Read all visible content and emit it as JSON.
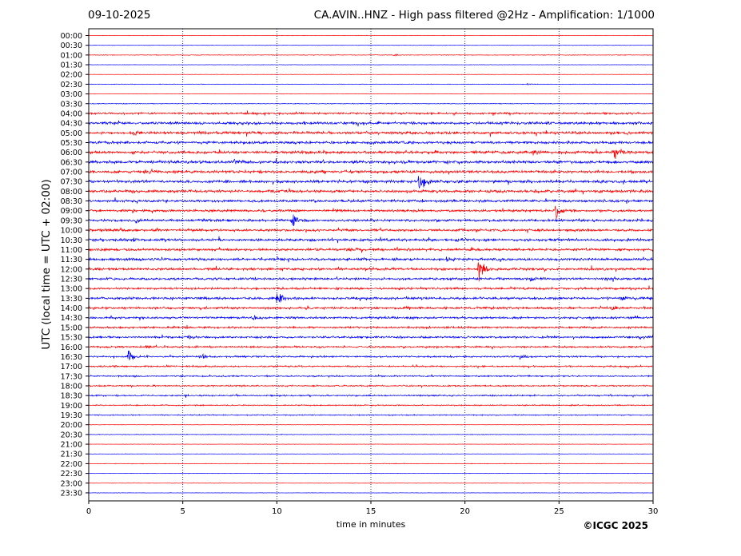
{
  "header": {
    "date": "09-10-2025",
    "title": "CA.AVIN..HNZ - High pass filtered @2Hz - Amplification: 1/1000"
  },
  "footer": {
    "copyright": "©ICGC 2025"
  },
  "colors": {
    "even_row": "#ff0000",
    "odd_row": "#0000ff",
    "gridline": "#000080"
  },
  "chart_data": {
    "type": "line",
    "title": "CA.AVIN..HNZ - High pass filtered @2Hz - Amplification: 1/1000",
    "xlabel": "time in minutes",
    "ylabel": "UTC (local time = UTC + 02:00)",
    "xlim": [
      0,
      30
    ],
    "xticks": [
      0,
      5,
      10,
      15,
      20,
      25,
      30
    ],
    "grid": "vertical dotted at 5-minute intervals",
    "rows": [
      "00:00",
      "00:30",
      "01:00",
      "01:30",
      "02:00",
      "02:30",
      "03:00",
      "03:30",
      "04:00",
      "04:30",
      "05:00",
      "05:30",
      "06:00",
      "06:30",
      "07:00",
      "07:30",
      "08:00",
      "08:30",
      "09:00",
      "09:30",
      "10:00",
      "10:30",
      "11:00",
      "11:30",
      "12:00",
      "12:30",
      "13:00",
      "13:30",
      "14:00",
      "14:30",
      "15:00",
      "15:30",
      "16:00",
      "16:30",
      "17:00",
      "17:30",
      "18:00",
      "18:30",
      "19:00",
      "19:30",
      "20:00",
      "20:30",
      "21:00",
      "21:30",
      "22:00",
      "22:30",
      "23:00",
      "23:30"
    ],
    "noise_level": [
      0.3,
      0.3,
      0.5,
      0.3,
      0.3,
      0.4,
      0.3,
      0.6,
      1.6,
      2.2,
      2.3,
      2.2,
      2.3,
      2.4,
      2.3,
      2.4,
      2.2,
      2.1,
      1.9,
      2.0,
      2.0,
      2.1,
      2.0,
      2.1,
      2.0,
      1.9,
      1.8,
      2.0,
      1.9,
      1.8,
      1.7,
      1.6,
      1.5,
      1.4,
      1.3,
      1.2,
      1.2,
      1.2,
      1.0,
      0.9,
      0.4,
      0.5,
      0.3,
      0.3,
      0.5,
      0.3,
      0.3,
      0.3
    ],
    "events": [
      {
        "row": "01:00",
        "minute": 16.2,
        "amplitude": 2
      },
      {
        "row": "02:30",
        "minute": 23.3,
        "amplitude": 3
      },
      {
        "row": "05:00",
        "minute": 2.4,
        "amplitude": 4
      },
      {
        "row": "06:00",
        "minute": 23.6,
        "amplitude": 10
      },
      {
        "row": "06:00",
        "minute": 27.9,
        "amplitude": 14
      },
      {
        "row": "06:30",
        "minute": 7.7,
        "amplitude": 4
      },
      {
        "row": "07:00",
        "minute": 3.0,
        "amplitude": 5
      },
      {
        "row": "07:30",
        "minute": 17.5,
        "amplitude": 28
      },
      {
        "row": "09:00",
        "minute": 24.8,
        "amplitude": 14
      },
      {
        "row": "09:30",
        "minute": 2.5,
        "amplitude": 4
      },
      {
        "row": "09:30",
        "minute": 10.8,
        "amplitude": 12
      },
      {
        "row": "10:30",
        "minute": 19.5,
        "amplitude": 4
      },
      {
        "row": "11:00",
        "minute": 13.8,
        "amplitude": 4
      },
      {
        "row": "11:30",
        "minute": 19.0,
        "amplitude": 4
      },
      {
        "row": "12:00",
        "minute": 20.7,
        "amplitude": 26
      },
      {
        "row": "12:30",
        "minute": 23.5,
        "amplitude": 6
      },
      {
        "row": "13:30",
        "minute": 10.0,
        "amplitude": 12
      },
      {
        "row": "13:30",
        "minute": 28.3,
        "amplitude": 4
      },
      {
        "row": "14:00",
        "minute": 27.8,
        "amplitude": 4
      },
      {
        "row": "14:30",
        "minute": 8.7,
        "amplitude": 4
      },
      {
        "row": "15:30",
        "minute": 5.3,
        "amplitude": 4
      },
      {
        "row": "15:30",
        "minute": 29.3,
        "amplitude": 4
      },
      {
        "row": "16:00",
        "minute": 3.0,
        "amplitude": 4
      },
      {
        "row": "16:30",
        "minute": 2.1,
        "amplitude": 14
      },
      {
        "row": "16:30",
        "minute": 5.9,
        "amplitude": 10
      },
      {
        "row": "16:30",
        "minute": 22.9,
        "amplitude": 4
      }
    ]
  }
}
